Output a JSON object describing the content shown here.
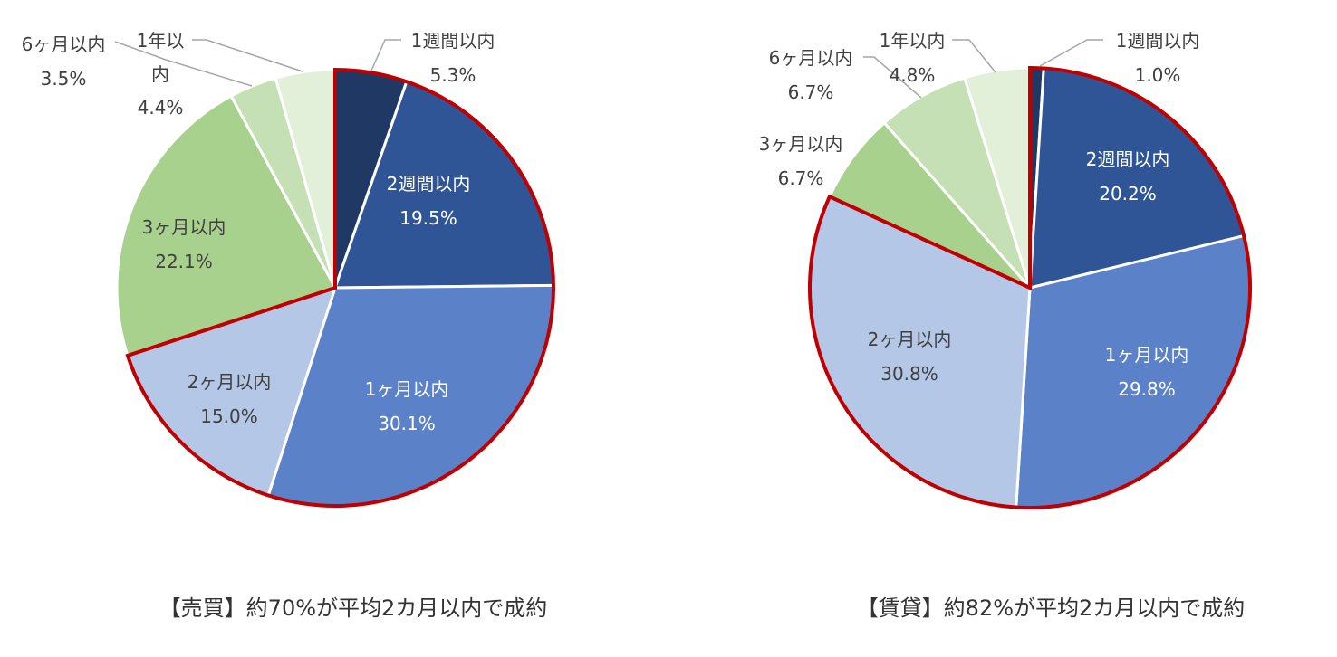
{
  "chart_data": [
    {
      "type": "pie",
      "title": "【売買】約70%が平均2カ月以内で成約",
      "categories": [
        "1週間以内",
        "2週間以内",
        "1ヶ月以内",
        "2ヶ月以内",
        "3ヶ月以内",
        "6ヶ月以内",
        "1年以内"
      ],
      "labels": [
        "1週間以内",
        "2週間以内",
        "1ヶ月以内",
        "2ヶ月以内",
        "3ヶ月以内",
        "6ヶ月以内",
        "1年以\n内"
      ],
      "values": [
        5.3,
        19.5,
        30.1,
        15.0,
        22.1,
        3.5,
        4.4
      ],
      "value_labels": [
        "5.3%",
        "19.5%",
        "30.1%",
        "15.0%",
        "22.1%",
        "3.5%",
        "4.4%"
      ],
      "colors": [
        "#203864",
        "#2f5597",
        "#5b82c8",
        "#b4c7e7",
        "#a9d18e",
        "#c5e0b4",
        "#e2f0d9"
      ],
      "highlight_slices": [
        0,
        1,
        2,
        3
      ],
      "highlight_color": "#c00000",
      "start_angle_deg": 0,
      "direction": "clockwise"
    },
    {
      "type": "pie",
      "title": "【賃貸】約82%が平均2カ月以内で成約",
      "categories": [
        "1週間以内",
        "2週間以内",
        "1ヶ月以内",
        "2ヶ月以内",
        "3ヶ月以内",
        "6ヶ月以内",
        "1年以内"
      ],
      "labels": [
        "1週間以内",
        "2週間以内",
        "1ヶ月以内",
        "2ヶ月以内",
        "3ヶ月以内",
        "6ヶ月以内",
        "1年以内"
      ],
      "values": [
        1.0,
        20.2,
        29.8,
        30.8,
        6.7,
        6.7,
        4.8
      ],
      "value_labels": [
        "1.0%",
        "20.2%",
        "29.8%",
        "30.8%",
        "6.7%",
        "6.7%",
        "4.8%"
      ],
      "colors": [
        "#203864",
        "#2f5597",
        "#5b82c8",
        "#b4c7e7",
        "#a9d18e",
        "#c5e0b4",
        "#e2f0d9"
      ],
      "highlight_slices": [
        0,
        1,
        2,
        3
      ],
      "highlight_color": "#c00000",
      "start_angle_deg": 0,
      "direction": "clockwise"
    }
  ]
}
